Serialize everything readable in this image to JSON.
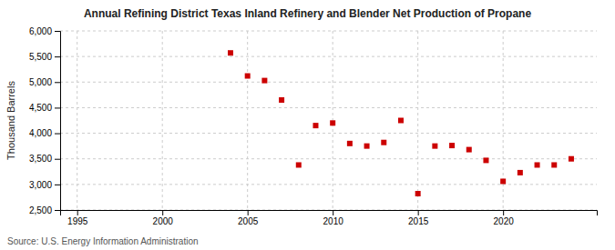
{
  "chart_data": {
    "type": "scatter",
    "title": "Annual Refining District Texas Inland Refinery and Blender Net Production of Propane",
    "ylabel": "Thousand Barrels",
    "source": "Source: U.S. Energy Information Administration",
    "color": "#cc0000",
    "marker": "square",
    "x": [
      2004,
      2005,
      2006,
      2007,
      2008,
      2009,
      2010,
      2011,
      2012,
      2013,
      2014,
      2015,
      2016,
      2017,
      2018,
      2019,
      2020,
      2021,
      2022,
      2023,
      2024
    ],
    "values": [
      5570,
      5120,
      5030,
      4650,
      3380,
      4150,
      4200,
      3800,
      3750,
      3820,
      4250,
      2820,
      3750,
      3760,
      3680,
      3470,
      3060,
      3230,
      3380,
      3380,
      3500
    ],
    "xlim": [
      1994,
      2025.5
    ],
    "xticks": [
      1995,
      2000,
      2005,
      2010,
      2015,
      2020
    ],
    "ylim": [
      2500,
      6000
    ],
    "yticks": [
      {
        "value": 2500,
        "label": "2,500"
      },
      {
        "value": 3000,
        "label": "3,000"
      },
      {
        "value": 3500,
        "label": "3,500"
      },
      {
        "value": 4000,
        "label": "4,000"
      },
      {
        "value": 4500,
        "label": "4,500"
      },
      {
        "value": 5000,
        "label": "5,000"
      },
      {
        "value": 5500,
        "label": "5,500"
      },
      {
        "value": 6000,
        "label": "6,000"
      }
    ],
    "grid": true
  }
}
